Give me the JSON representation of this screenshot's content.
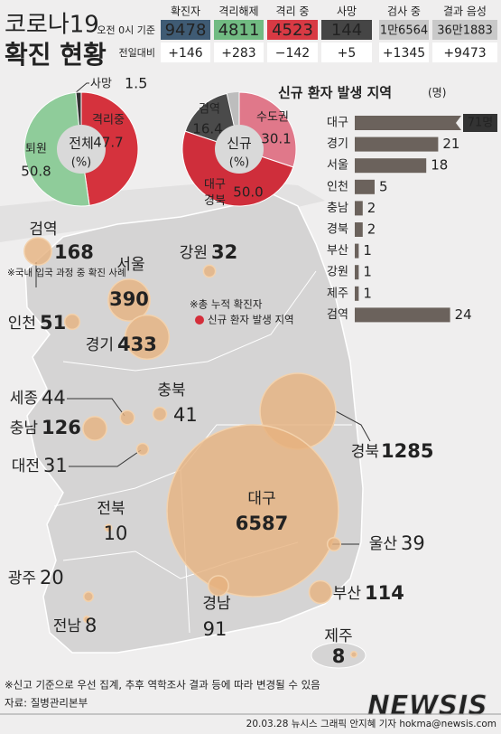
{
  "header": {
    "title_line1": "코로나19",
    "title_line2": "확진 현황"
  },
  "stats": {
    "columns": [
      "확진자",
      "격리해제",
      "격리 중",
      "사망",
      "검사 중",
      "결과 음성"
    ],
    "colors": [
      "#3f5b74",
      "#71bb82",
      "#d83a44",
      "#454545",
      "#c9c9c9",
      "#c9c9c9"
    ],
    "text_colors": [
      "#ffffff",
      "#ffffff",
      "#ffffff",
      "#ffffff",
      "#666666",
      "#666666"
    ],
    "rows": [
      {
        "label": "오전 0시 기준",
        "cells": [
          "9478",
          "4811",
          "4523",
          "144",
          "1만6564",
          "36만1883"
        ]
      },
      {
        "label": "전일대비",
        "cells": [
          "+146",
          "+283",
          "−142",
          "+5",
          "+1345",
          "+9473"
        ]
      }
    ]
  },
  "chart_data": [
    {
      "type": "pie",
      "center_label": "전체",
      "unit_label": "(%)",
      "categories": [
        "격리중",
        "퇴원",
        "사망"
      ],
      "values": [
        47.7,
        50.8,
        1.5
      ],
      "colors": [
        "#d5323d",
        "#8fcc9a",
        "#333333"
      ]
    },
    {
      "type": "pie",
      "center_label": "신규",
      "unit_label": "(%)",
      "categories": [
        "수도권",
        "대구 경북",
        "검역"
      ],
      "values": [
        30.1,
        50.0,
        16.4
      ],
      "value_labels": [
        "30.1",
        "50.0",
        "16.4"
      ],
      "colors": [
        "#e0788a",
        "#cf2e3b",
        "#4a4a4a"
      ],
      "rest_color": "#bdbdbd"
    },
    {
      "type": "bar",
      "orientation": "horizontal",
      "title": "신규 환자 발생 지역",
      "unit": "(명)",
      "categories": [
        "대구",
        "경기",
        "서울",
        "인천",
        "충남",
        "경북",
        "부산",
        "강원",
        "제주",
        "검역"
      ],
      "values": [
        71,
        21,
        18,
        5,
        2,
        2,
        1,
        1,
        1,
        24
      ],
      "value_labels": [
        "71명",
        "21",
        "18",
        "5",
        "2",
        "2",
        "1",
        "1",
        "1",
        "24"
      ],
      "color": "#6b625c"
    },
    {
      "type": "bubble-map",
      "categories": [
        "검역",
        "서울",
        "인천",
        "경기",
        "강원",
        "세종",
        "충남",
        "충북",
        "대전",
        "경북",
        "전북",
        "대구",
        "울산",
        "광주",
        "부산",
        "경남",
        "전남",
        "제주"
      ],
      "values": [
        168,
        390,
        51,
        433,
        32,
        44,
        126,
        41,
        31,
        1285,
        10,
        6587,
        39,
        20,
        114,
        91,
        8,
        8
      ],
      "new": [
        true,
        true,
        true,
        true,
        true,
        false,
        true,
        false,
        false,
        true,
        false,
        true,
        false,
        false,
        true,
        false,
        false,
        true
      ],
      "bubble_color": "#e6b27e",
      "new_color": "#d42e3a",
      "quarantine_note": "※국내 입국 과정 중 확진 사례",
      "legend_note": "※총 누적 확진자",
      "legend_new": "신규 환자 발생 지역"
    }
  ],
  "footer": {
    "note": "※신고 기준으로 우선 집계, 추후 역학조사 결과 등에 따라 변경될 수 있음",
    "source": "자료: 질병관리본부",
    "credit": "20.03.28 뉴시스 그래픽 안지혜 기자 hokma@newsis.com",
    "logo": "NEWSIS"
  }
}
